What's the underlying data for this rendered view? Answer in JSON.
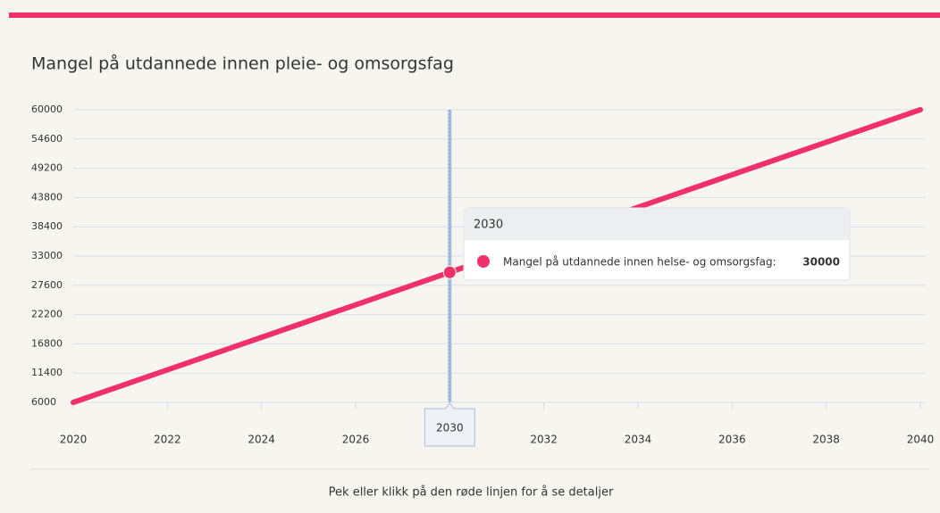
{
  "chart_data": {
    "type": "line",
    "title": "Mangel på utdannede innen pleie- og omsorgsfag",
    "categories": [
      "2020",
      "2022",
      "2024",
      "2026",
      "2030",
      "2032",
      "2034",
      "2036",
      "2038",
      "2040"
    ],
    "series": [
      {
        "name": "Mangel på utdannede innen helse- og omsorgsfag:",
        "color": "#f0306a",
        "values": [
          6000,
          12000,
          18000,
          24000,
          30000,
          36000,
          42000,
          48000,
          54000,
          60000
        ]
      }
    ],
    "ylim": [
      6000,
      60000
    ],
    "yticks": [
      6000,
      11400,
      16800,
      22200,
      27600,
      33000,
      38400,
      43800,
      49200,
      54600,
      60000
    ],
    "grid": true,
    "highlight_index": 4,
    "footer": "Pek eller klikk på den røde linjen for å se detaljer"
  }
}
